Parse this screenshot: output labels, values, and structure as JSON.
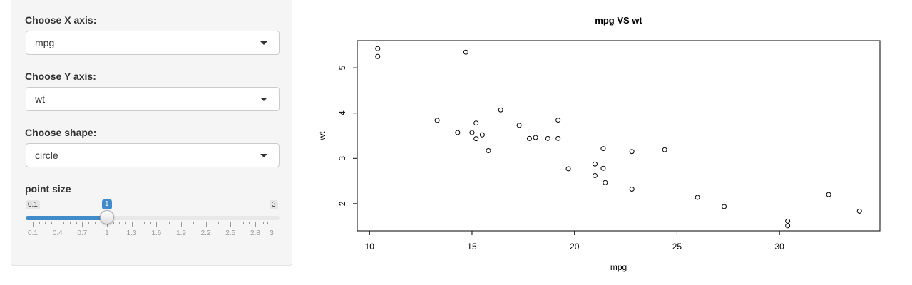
{
  "sidebar": {
    "x_axis": {
      "label": "Choose X axis:",
      "value": "mpg"
    },
    "y_axis": {
      "label": "Choose Y axis:",
      "value": "wt"
    },
    "shape": {
      "label": "Choose shape:",
      "value": "circle"
    },
    "point_size": {
      "label": "point size",
      "min": 0.1,
      "max": 3,
      "value": 1,
      "min_label": "0.1",
      "max_label": "3",
      "value_label": "1",
      "tick_labels": [
        "0.1",
        "0.4",
        "0.7",
        "1",
        "1.3",
        "1.6",
        "1.9",
        "2.2",
        "2.5",
        "2.8",
        "3"
      ],
      "tick_values": [
        0.1,
        0.4,
        0.7,
        1.0,
        1.3,
        1.6,
        1.9,
        2.2,
        2.5,
        2.8,
        3.0
      ]
    }
  },
  "chart_data": {
    "type": "scatter",
    "title": "mpg  VS  wt",
    "xlabel": "mpg",
    "ylabel": "wt",
    "xlim": [
      9.4,
      34.9
    ],
    "ylim": [
      1.4,
      5.6
    ],
    "xticks": [
      "10",
      "15",
      "20",
      "25",
      "30"
    ],
    "xtick_values": [
      10,
      15,
      20,
      25,
      30
    ],
    "yticks": [
      "2",
      "3",
      "4",
      "5"
    ],
    "ytick_values": [
      2,
      3,
      4,
      5
    ],
    "marker": "circle",
    "grid": false,
    "points": [
      [
        21.0,
        2.62
      ],
      [
        21.0,
        2.875
      ],
      [
        22.8,
        2.32
      ],
      [
        21.4,
        3.215
      ],
      [
        18.7,
        3.44
      ],
      [
        18.1,
        3.46
      ],
      [
        14.3,
        3.57
      ],
      [
        24.4,
        3.19
      ],
      [
        22.8,
        3.15
      ],
      [
        19.2,
        3.44
      ],
      [
        17.8,
        3.44
      ],
      [
        16.4,
        4.07
      ],
      [
        17.3,
        3.73
      ],
      [
        15.2,
        3.78
      ],
      [
        10.4,
        5.25
      ],
      [
        10.4,
        5.424
      ],
      [
        14.7,
        5.345
      ],
      [
        32.4,
        2.2
      ],
      [
        30.4,
        1.615
      ],
      [
        33.9,
        1.835
      ],
      [
        21.5,
        2.465
      ],
      [
        15.5,
        3.52
      ],
      [
        15.2,
        3.435
      ],
      [
        13.3,
        3.84
      ],
      [
        19.2,
        3.845
      ],
      [
        27.3,
        1.935
      ],
      [
        26.0,
        2.14
      ],
      [
        30.4,
        1.513
      ],
      [
        15.8,
        3.17
      ],
      [
        19.7,
        2.77
      ],
      [
        15.0,
        3.57
      ],
      [
        21.4,
        2.78
      ]
    ]
  }
}
